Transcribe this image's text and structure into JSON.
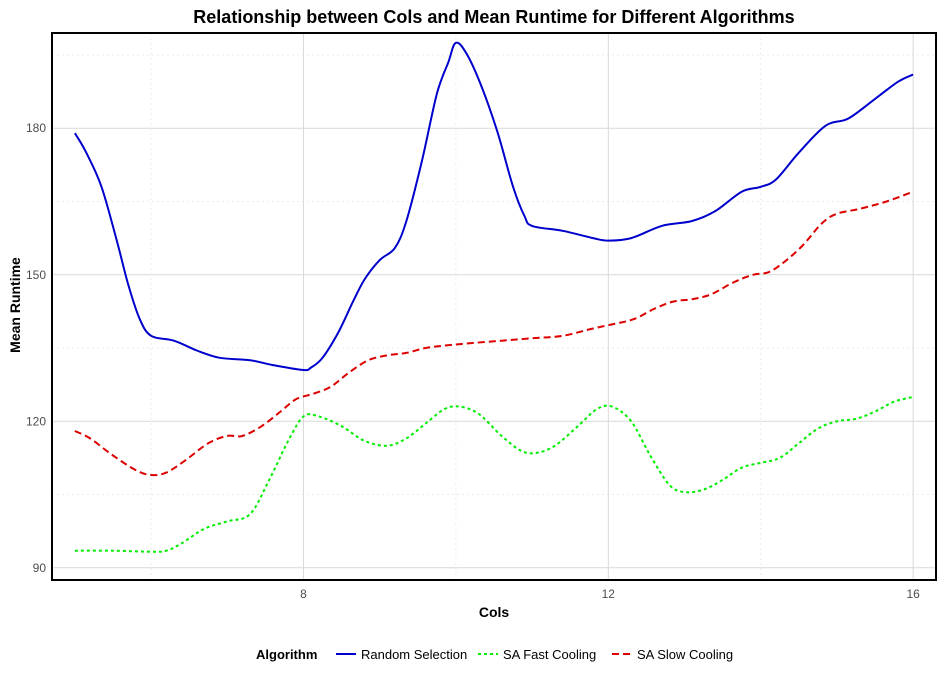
{
  "chart_data": {
    "type": "line",
    "title": "Relationship between Cols and Mean Runtime for Different Algorithms",
    "xlabel": "Cols",
    "ylabel": "Mean Runtime",
    "xlim": [
      4.7,
      16.3
    ],
    "ylim": [
      87.5,
      199.5
    ],
    "x_ticks": [
      8,
      12,
      16
    ],
    "y_ticks": [
      90,
      120,
      150,
      180
    ],
    "grid": true,
    "legend": {
      "title": "Algorithm",
      "position": "bottom"
    },
    "series": [
      {
        "name": "Random Selection",
        "color": "#0000CD",
        "dash": "solid",
        "points": [
          [
            5,
            179
          ],
          [
            5.15,
            175
          ],
          [
            5.35,
            168
          ],
          [
            5.55,
            157
          ],
          [
            5.7,
            148
          ],
          [
            5.85,
            141
          ],
          [
            6,
            137.5
          ],
          [
            6.3,
            136.5
          ],
          [
            6.6,
            134.5
          ],
          [
            6.9,
            133
          ],
          [
            7.3,
            132.5
          ],
          [
            7.6,
            131.5
          ],
          [
            8,
            130.5
          ],
          [
            8.1,
            131
          ],
          [
            8.25,
            133
          ],
          [
            8.45,
            138
          ],
          [
            8.65,
            144.5
          ],
          [
            8.8,
            149
          ],
          [
            9,
            153
          ],
          [
            9.2,
            155.5
          ],
          [
            9.35,
            161
          ],
          [
            9.55,
            173
          ],
          [
            9.75,
            187
          ],
          [
            9.9,
            193.5
          ],
          [
            10,
            197.5
          ],
          [
            10.15,
            195
          ],
          [
            10.35,
            188
          ],
          [
            10.55,
            179
          ],
          [
            10.75,
            168
          ],
          [
            10.9,
            162
          ],
          [
            11,
            160
          ],
          [
            11.4,
            159
          ],
          [
            11.8,
            157.5
          ],
          [
            12,
            157
          ],
          [
            12.3,
            157.5
          ],
          [
            12.7,
            160
          ],
          [
            13.1,
            161
          ],
          [
            13.4,
            163
          ],
          [
            13.75,
            167
          ],
          [
            14,
            168
          ],
          [
            14.2,
            169.5
          ],
          [
            14.5,
            175
          ],
          [
            14.85,
            180.5
          ],
          [
            15.15,
            182
          ],
          [
            15.5,
            186
          ],
          [
            15.8,
            189.5
          ],
          [
            16,
            191
          ]
        ]
      },
      {
        "name": "SA Fast Cooling",
        "color": "#00EE00",
        "dash": "dotted",
        "points": [
          [
            5,
            93.5
          ],
          [
            5.5,
            93.5
          ],
          [
            6,
            93.3
          ],
          [
            6.2,
            93.5
          ],
          [
            6.4,
            95
          ],
          [
            6.7,
            98
          ],
          [
            7,
            99.5
          ],
          [
            7.3,
            101
          ],
          [
            7.55,
            108
          ],
          [
            7.8,
            116
          ],
          [
            8,
            121
          ],
          [
            8.2,
            121
          ],
          [
            8.5,
            119
          ],
          [
            8.8,
            116
          ],
          [
            9.1,
            115
          ],
          [
            9.35,
            116.5
          ],
          [
            9.6,
            119.5
          ],
          [
            9.85,
            122.5
          ],
          [
            10.05,
            123
          ],
          [
            10.3,
            121.5
          ],
          [
            10.6,
            117
          ],
          [
            10.85,
            114
          ],
          [
            11.05,
            113.5
          ],
          [
            11.3,
            115
          ],
          [
            11.6,
            119
          ],
          [
            11.85,
            122.5
          ],
          [
            12.05,
            123
          ],
          [
            12.3,
            120
          ],
          [
            12.55,
            113
          ],
          [
            12.8,
            107
          ],
          [
            13,
            105.5
          ],
          [
            13.25,
            106
          ],
          [
            13.5,
            108
          ],
          [
            13.75,
            110.5
          ],
          [
            14,
            111.5
          ],
          [
            14.25,
            112.5
          ],
          [
            14.5,
            115.5
          ],
          [
            14.75,
            118.5
          ],
          [
            15,
            120
          ],
          [
            15.25,
            120.5
          ],
          [
            15.5,
            122
          ],
          [
            15.75,
            124
          ],
          [
            16,
            125
          ]
        ]
      },
      {
        "name": "SA Slow Cooling",
        "color": "#DD0000",
        "dash": "dashed",
        "points": [
          [
            5,
            118
          ],
          [
            5.2,
            116.5
          ],
          [
            5.5,
            113
          ],
          [
            5.8,
            110
          ],
          [
            6,
            109
          ],
          [
            6.2,
            109.5
          ],
          [
            6.45,
            112
          ],
          [
            6.75,
            115.5
          ],
          [
            7,
            117
          ],
          [
            7.2,
            117
          ],
          [
            7.45,
            119
          ],
          [
            7.7,
            122
          ],
          [
            7.9,
            124.5
          ],
          [
            8.1,
            125.5
          ],
          [
            8.35,
            127
          ],
          [
            8.6,
            130
          ],
          [
            8.85,
            132.5
          ],
          [
            9.1,
            133.5
          ],
          [
            9.35,
            134
          ],
          [
            9.6,
            135
          ],
          [
            9.85,
            135.5
          ],
          [
            10.2,
            136
          ],
          [
            10.6,
            136.5
          ],
          [
            11,
            137
          ],
          [
            11.4,
            137.5
          ],
          [
            11.8,
            139
          ],
          [
            12.1,
            140
          ],
          [
            12.35,
            141
          ],
          [
            12.6,
            143
          ],
          [
            12.85,
            144.5
          ],
          [
            13.1,
            145
          ],
          [
            13.35,
            146
          ],
          [
            13.65,
            148.5
          ],
          [
            13.9,
            150
          ],
          [
            14.1,
            150.5
          ],
          [
            14.3,
            152.5
          ],
          [
            14.55,
            156
          ],
          [
            14.8,
            160.5
          ],
          [
            15,
            162.5
          ],
          [
            15.3,
            163.5
          ],
          [
            15.65,
            165
          ],
          [
            16,
            167
          ]
        ]
      }
    ]
  }
}
